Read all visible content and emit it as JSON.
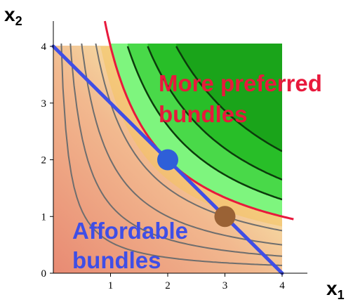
{
  "axes": {
    "x": {
      "var": "x",
      "sub": "1",
      "ticks": [
        "0",
        "1",
        "2",
        "3",
        "4"
      ]
    },
    "y": {
      "var": "x",
      "sub": "2",
      "ticks": [
        "0",
        "1",
        "2",
        "3",
        "4"
      ]
    }
  },
  "labels": {
    "preferred_line1": "More preferred",
    "preferred_line2": "bundles",
    "affordable_line1": "Affordable",
    "affordable_line2": "bundles"
  },
  "colors": {
    "preferred_region": "#7ef57e",
    "indifference_curve": "#e8193c",
    "budget_line": "#3f4ee6",
    "optimal_bundle": "#2f5fd8",
    "other_bundle": "#9a6235",
    "label_preferred": "#e8193c",
    "label_affordable": "#3f4ee6"
  },
  "chart_data": {
    "type": "diagram",
    "budget_line": {
      "x1_intercept": 4,
      "x2_intercept": 4
    },
    "indifference_curve": {
      "utility": 4,
      "form": "x1*x2"
    },
    "points": [
      {
        "name": "optimal",
        "x1": 2,
        "x2": 2
      },
      {
        "name": "other",
        "x1": 3,
        "x2": 1
      }
    ],
    "xlim": [
      0,
      4
    ],
    "ylim": [
      0,
      4
    ]
  }
}
